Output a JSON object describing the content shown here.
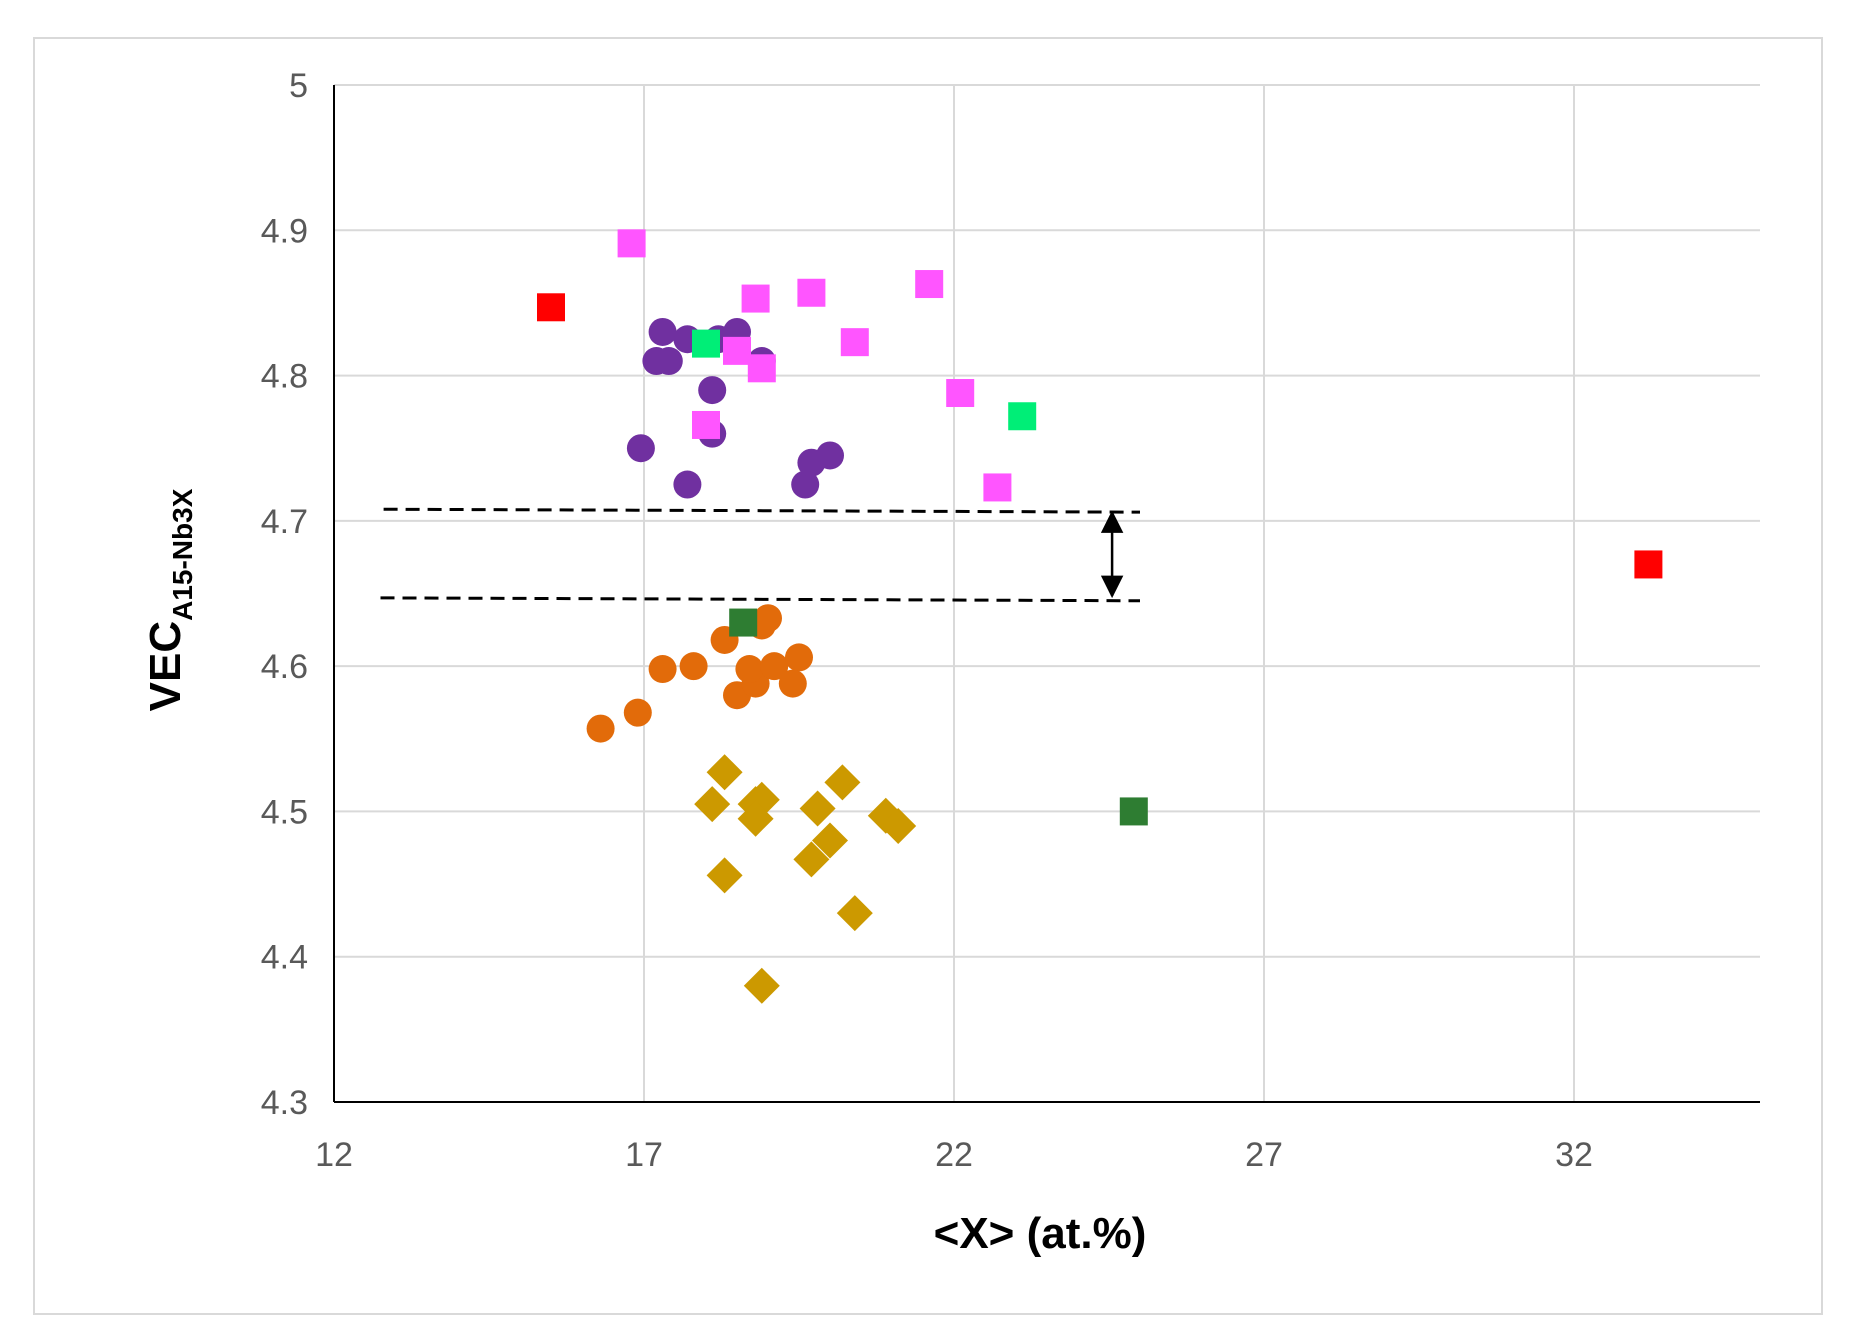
{
  "chart_data": {
    "type": "scatter",
    "title": "",
    "xlabel": "<X> (at.%)",
    "ylabel_main": "VEC",
    "ylabel_sub": "A15-Nb3X",
    "xlim": [
      12,
      35
    ],
    "ylim": [
      4.3,
      5.0
    ],
    "x_ticks": [
      "12",
      "17",
      "22",
      "27",
      "32"
    ],
    "y_ticks": [
      "4.3",
      "4.4",
      "4.5",
      "4.6",
      "4.7",
      "4.8",
      "4.9",
      "5"
    ],
    "grid": true,
    "legend": "none",
    "series": [
      {
        "name": "purple-circles",
        "marker": "circle",
        "color": "#7030a0",
        "points": [
          [
            17.3,
            4.83
          ],
          [
            17.2,
            4.81
          ],
          [
            17.4,
            4.81
          ],
          [
            17.7,
            4.825
          ],
          [
            18.2,
            4.825
          ],
          [
            18.5,
            4.83
          ],
          [
            18.9,
            4.81
          ],
          [
            18.1,
            4.79
          ],
          [
            18.1,
            4.76
          ],
          [
            16.95,
            4.75
          ],
          [
            17.7,
            4.725
          ],
          [
            19.6,
            4.725
          ],
          [
            19.7,
            4.74
          ],
          [
            20.0,
            4.745
          ]
        ]
      },
      {
        "name": "orange-circles",
        "marker": "circle",
        "color": "#e26b0a",
        "points": [
          [
            16.3,
            4.557
          ],
          [
            16.9,
            4.568
          ],
          [
            17.3,
            4.598
          ],
          [
            17.8,
            4.6
          ],
          [
            18.3,
            4.618
          ],
          [
            18.5,
            4.58
          ],
          [
            18.8,
            4.588
          ],
          [
            18.7,
            4.598
          ],
          [
            19.1,
            4.6
          ],
          [
            18.9,
            4.628
          ],
          [
            19.0,
            4.633
          ],
          [
            19.5,
            4.606
          ],
          [
            19.4,
            4.588
          ]
        ]
      },
      {
        "name": "gold-diamonds",
        "marker": "diamond",
        "color": "#cc9900",
        "points": [
          [
            18.3,
            4.527
          ],
          [
            18.1,
            4.505
          ],
          [
            18.8,
            4.505
          ],
          [
            18.9,
            4.508
          ],
          [
            18.8,
            4.495
          ],
          [
            19.8,
            4.502
          ],
          [
            20.2,
            4.52
          ],
          [
            20.9,
            4.497
          ],
          [
            21.1,
            4.49
          ],
          [
            20.0,
            4.48
          ],
          [
            19.7,
            4.467
          ],
          [
            18.3,
            4.456
          ],
          [
            20.4,
            4.43
          ],
          [
            18.9,
            4.38
          ]
        ]
      },
      {
        "name": "magenta-squares",
        "marker": "square",
        "color": "#ff55ff",
        "points": [
          [
            16.8,
            4.891
          ],
          [
            18.8,
            4.853
          ],
          [
            19.7,
            4.857
          ],
          [
            21.6,
            4.863
          ],
          [
            20.4,
            4.823
          ],
          [
            18.5,
            4.817
          ],
          [
            18.9,
            4.805
          ],
          [
            22.1,
            4.788
          ],
          [
            18.0,
            4.766
          ],
          [
            22.7,
            4.723
          ]
        ]
      },
      {
        "name": "bright-green-squares",
        "marker": "square",
        "color": "#00ee77",
        "points": [
          [
            18.0,
            4.822
          ],
          [
            23.1,
            4.772
          ]
        ]
      },
      {
        "name": "dark-green-squares",
        "marker": "square",
        "color": "#2e7d32",
        "points": [
          [
            18.6,
            4.63
          ],
          [
            24.9,
            4.5
          ]
        ]
      },
      {
        "name": "red-squares",
        "marker": "square",
        "color": "#ff0000",
        "points": [
          [
            15.5,
            4.847
          ],
          [
            33.2,
            4.67
          ]
        ]
      }
    ],
    "reference_lines": [
      {
        "name": "upper-dashed-line",
        "x_start": 12.8,
        "x_end": 25.0,
        "y_start": 4.708,
        "y_end": 4.706
      },
      {
        "name": "lower-dashed-line",
        "x_start": 12.75,
        "x_end": 25.0,
        "y_start": 4.647,
        "y_end": 4.645
      }
    ],
    "annotations": [
      {
        "name": "range-double-arrow",
        "x": 24.55,
        "y_from": 4.707,
        "y_to": 4.647
      }
    ]
  }
}
